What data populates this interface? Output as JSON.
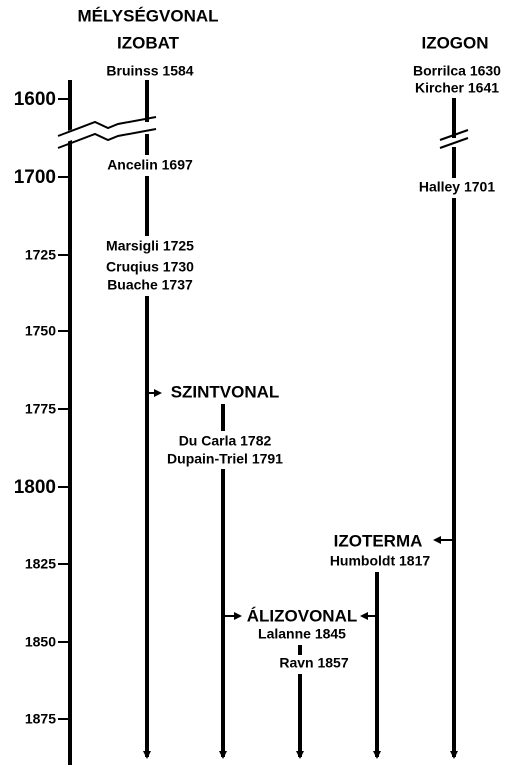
{
  "axis": {
    "years": [
      "1600",
      "1700",
      "1725",
      "1750",
      "1775",
      "1800",
      "1825",
      "1850",
      "1875"
    ]
  },
  "columns": [
    {
      "heading": "MÉLYSÉGVONAL",
      "subheading": "IZOBAT",
      "entries": [
        "Bruinss 1584",
        "Ancelin 1697",
        "Marsigli 1725",
        "Cruqius 1730",
        "Buache 1737"
      ]
    },
    {
      "heading": "SZINTVONAL",
      "entries": [
        "Du Carla 1782",
        "Dupain-Triel 1791"
      ]
    },
    {
      "heading": "ÁLIZOVONAL",
      "entries": [
        "Lalanne 1845",
        "Ravn 1857"
      ]
    },
    {
      "heading": "IZOTERMA",
      "entries": [
        "Humboldt 1817"
      ]
    },
    {
      "heading": "IZOGON",
      "entries": [
        "Borrilca 1630",
        "Kircher 1641",
        "Halley 1701"
      ]
    }
  ]
}
